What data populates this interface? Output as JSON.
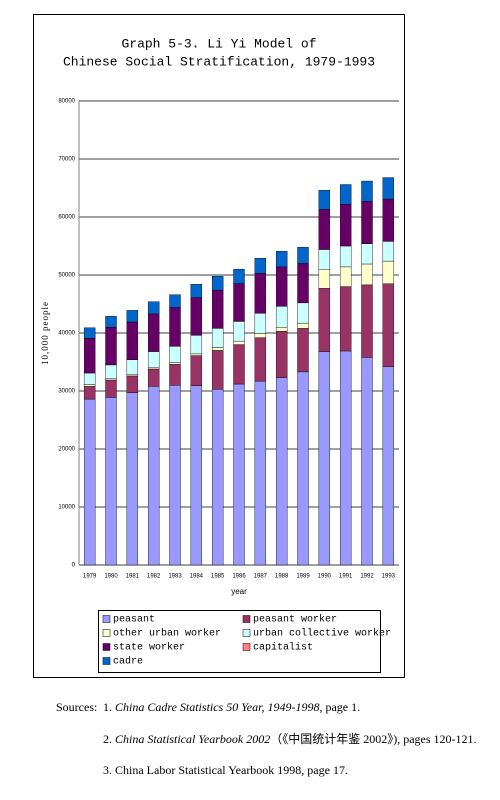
{
  "chart_data": {
    "type": "stacked_bar",
    "title": [
      "Graph 5-3. Li Yi Model of",
      "Chinese Social Stratification, 1979-1993"
    ],
    "y_label": "10,000 people",
    "x_label": "year",
    "categories": [
      "1979",
      "1980",
      "1981",
      "1982",
      "1983",
      "1984",
      "1985",
      "1986",
      "1987",
      "1988",
      "1989",
      "1990",
      "1991",
      "1992",
      "1993"
    ],
    "series": [
      {
        "name": "peasant",
        "color": "#9999ff",
        "values": [
          28600,
          28900,
          29700,
          30800,
          31000,
          30900,
          30300,
          31200,
          31700,
          32300,
          33300,
          36800,
          36900,
          35800,
          34200
        ]
      },
      {
        "name": "peasant worker",
        "color": "#993366",
        "values": [
          2200,
          3000,
          2900,
          3000,
          3600,
          5200,
          6700,
          6800,
          7500,
          8000,
          7500,
          10900,
          11100,
          12500,
          14300
        ]
      },
      {
        "name": "other urban worker",
        "color": "#ffffcc",
        "values": [
          300,
          300,
          300,
          300,
          300,
          300,
          500,
          600,
          700,
          700,
          900,
          3200,
          3400,
          3600,
          3900
        ]
      },
      {
        "name": "urban collective worker",
        "color": "#ccffff",
        "values": [
          2000,
          2300,
          2500,
          2700,
          2800,
          3200,
          3300,
          3400,
          3500,
          3600,
          3500,
          3500,
          3600,
          3500,
          3400
        ]
      },
      {
        "name": "state worker",
        "color": "#660066",
        "values": [
          6000,
          6500,
          6500,
          6500,
          6700,
          6500,
          6600,
          6500,
          6900,
          6800,
          6800,
          6900,
          7200,
          7300,
          7300
        ]
      },
      {
        "name": "capitalist",
        "color": "#ff8080",
        "values": [
          0,
          0,
          0,
          0,
          0,
          0,
          0,
          0,
          0,
          0,
          0,
          0,
          0,
          0,
          0
        ]
      },
      {
        "name": "cadre",
        "color": "#0066cc",
        "values": [
          1800,
          1900,
          2000,
          2100,
          2200,
          2300,
          2400,
          2500,
          2600,
          2700,
          2800,
          3300,
          3400,
          3500,
          3700
        ]
      }
    ],
    "ylim": [
      0,
      80000
    ],
    "yticks": [
      0,
      10000,
      20000,
      30000,
      40000,
      50000,
      60000,
      70000,
      80000
    ],
    "grid": true
  },
  "sources": {
    "label": "Sources:",
    "items": [
      {
        "num": "1.",
        "title": "China Cadre Statistics 50 Year, 1949-1998",
        "rest": ", page 1."
      },
      {
        "num": "2.",
        "title": "China Statistical Yearbook 2002",
        "rest": "（《中国统计年鉴 2002》), pages 120-121."
      },
      {
        "num": "3.",
        "rest": "China Labor Statistical Yearbook 1998, page 17."
      }
    ]
  }
}
